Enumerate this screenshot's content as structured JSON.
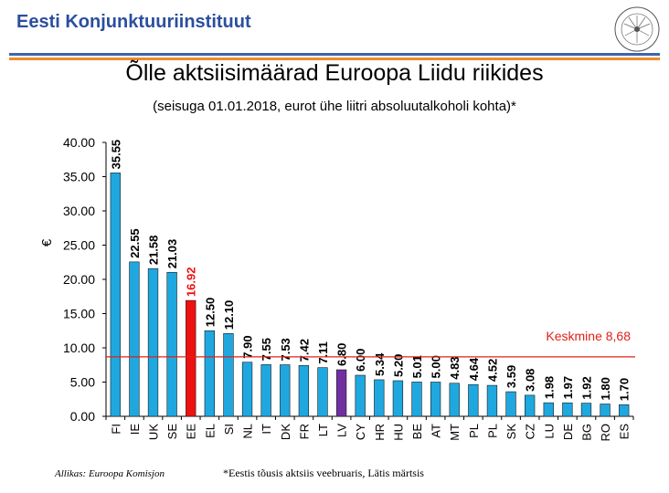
{
  "header": {
    "org_name": "Eesti Konjunktuuriinstituut",
    "logo_text": "EESTI KONJUNKTUURIINSTITUUT"
  },
  "colors": {
    "bar": "#1fa8e0",
    "highlight": "#ee1111",
    "secondary": "#7030a0",
    "average_line": "#e0201a",
    "header_blue": "#3a66b0",
    "header_orange": "#f08a2b"
  },
  "chart_data": {
    "type": "bar",
    "title": "Õlle aktsiisimäärad Euroopa Liidu riikides",
    "subtitle": "(seisuga 01.01.2018, eurot ühe liitri absoluutalkoholi kohta)*",
    "ylabel": "€",
    "ylim": [
      0,
      40
    ],
    "yticks": [
      "0.00",
      "5.00",
      "10.00",
      "15.00",
      "20.00",
      "25.00",
      "30.00",
      "35.00",
      "40.00"
    ],
    "categories": [
      "FI",
      "IE",
      "UK",
      "SE",
      "EE",
      "EL",
      "SI",
      "NL",
      "IT",
      "DK",
      "FR",
      "LT",
      "LV",
      "CY",
      "HR",
      "HU",
      "BE",
      "AT",
      "MT",
      "PL",
      "PL",
      "SK",
      "CZ",
      "LU",
      "DE",
      "BG",
      "RO",
      "ES"
    ],
    "values": [
      35.55,
      22.55,
      21.58,
      21.03,
      16.92,
      12.5,
      12.1,
      7.9,
      7.55,
      7.53,
      7.42,
      7.11,
      6.8,
      6.0,
      5.34,
      5.2,
      5.01,
      5.0,
      4.83,
      4.64,
      4.52,
      3.59,
      3.08,
      1.98,
      1.97,
      1.92,
      1.8,
      1.7
    ],
    "labels": [
      "35.55",
      "22.55",
      "21.58",
      "21.03",
      "16.92",
      "12.50",
      "12.10",
      "7.90",
      "7.55",
      "7.53",
      "7.42",
      "7.11",
      "6.80",
      "6.00",
      "5.34",
      "5.20",
      "5.01",
      "5.00",
      "4.83",
      "4.64",
      "4.52",
      "3.59",
      "3.08",
      "1.98",
      "1.97",
      "1.92",
      "1.80",
      "1.70"
    ],
    "highlight_category": "EE",
    "secondary_category": "LV",
    "average": {
      "label": "Keskmine 8,68",
      "value": 8.68
    },
    "grid": false
  },
  "footer": {
    "source": "Allikas: Euroopa Komisjon",
    "footnote": "*Eestis tõusis aktsiis veebruaris, Lätis märtsis"
  }
}
